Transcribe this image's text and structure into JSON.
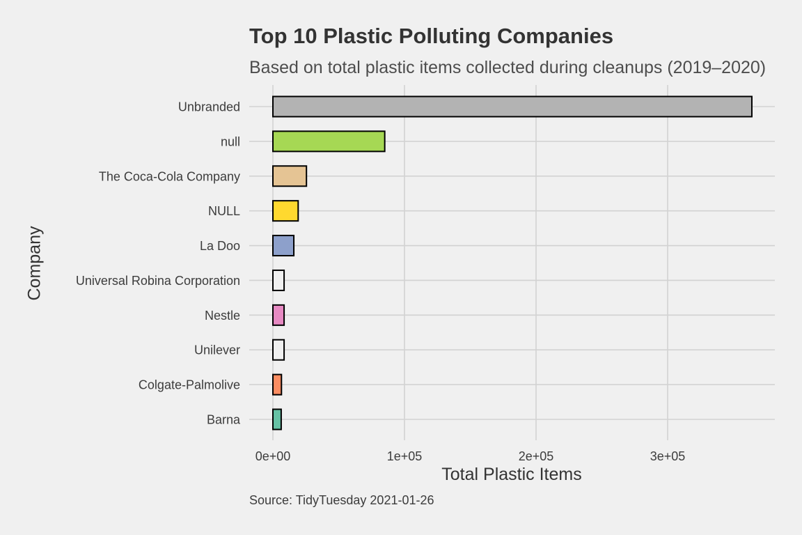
{
  "chart_data": {
    "type": "bar",
    "orientation": "horizontal",
    "title": "Top 10 Plastic Polluting Companies",
    "subtitle": "Based on total plastic items collected during cleanups (2019–2020)",
    "xlabel": "Total Plastic Items",
    "ylabel": "Company",
    "caption": "Source: TidyTuesday 2021-01-26",
    "xlim": [
      0,
      380000
    ],
    "x_ticks": [
      0,
      100000,
      200000,
      300000
    ],
    "x_tick_labels": [
      "0e+00",
      "1e+05",
      "2e+05",
      "3e+05"
    ],
    "grid": true,
    "legend": "none",
    "categories": [
      "Unbranded",
      "null",
      "The Coca-Cola Company",
      "NULL",
      "La Doo",
      "Universal Robina Corporation",
      "Nestle",
      "Unilever",
      "Colgate-Palmolive",
      "Barna"
    ],
    "values": [
      364000,
      85000,
      25500,
      19200,
      15900,
      8500,
      8500,
      8500,
      6500,
      6300
    ],
    "colors": [
      "#b3b3b3",
      "#a6d854",
      "#e5c494",
      "#ffd92f",
      "#8da0cb",
      "#f0f0f0",
      "#e78ac3",
      "#f0f0f0",
      "#fc8d62",
      "#66c2a5"
    ]
  }
}
